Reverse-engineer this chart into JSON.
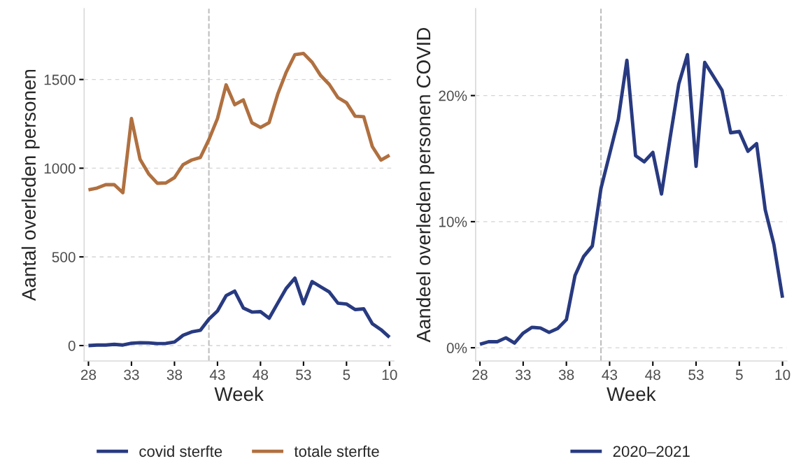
{
  "chart_data": [
    {
      "type": "line",
      "xlabel": "Week",
      "ylabel": "Aantal overleden personen",
      "categories": [
        "28",
        null,
        null,
        null,
        null,
        "33",
        null,
        null,
        null,
        null,
        "38",
        null,
        null,
        null,
        null,
        "43",
        null,
        null,
        null,
        null,
        "48",
        null,
        null,
        null,
        null,
        "53",
        null,
        null,
        null,
        null,
        "5",
        null,
        null,
        null,
        null,
        "10"
      ],
      "series": [
        {
          "name": "covid sterfte",
          "color": "#283a80",
          "values": [
            0,
            3,
            3,
            7,
            3,
            13,
            16,
            15,
            11,
            12,
            20,
            58,
            77,
            86,
            149,
            195,
            281,
            307,
            212,
            189,
            191,
            154,
            239,
            323,
            380,
            236,
            361,
            331,
            302,
            239,
            234,
            203,
            207,
            123,
            90,
            47
          ]
        },
        {
          "name": "totale sterfte",
          "color": "#b07040",
          "values": [
            878,
            888,
            907,
            907,
            862,
            1280,
            1050,
            968,
            915,
            917,
            947,
            1020,
            1046,
            1060,
            1161,
            1280,
            1470,
            1358,
            1385,
            1256,
            1230,
            1257,
            1417,
            1542,
            1640,
            1647,
            1597,
            1522,
            1472,
            1398,
            1369,
            1293,
            1290,
            1122,
            1046,
            1073
          ]
        }
      ],
      "ylim": [
        -87,
        1900
      ],
      "yticks": [
        0,
        500,
        1000,
        1500
      ],
      "grid": "y",
      "legend": "bottom",
      "line_style": "solid",
      "marker": "none"
    },
    {
      "type": "line",
      "xlabel": "Week",
      "ylabel": "Aandeel overleden personen COVID",
      "categories": [
        "28",
        null,
        null,
        null,
        null,
        "33",
        null,
        null,
        null,
        null,
        "38",
        null,
        null,
        null,
        null,
        "43",
        null,
        null,
        null,
        null,
        "48",
        null,
        null,
        null,
        null,
        "53",
        null,
        null,
        null,
        null,
        "5",
        null,
        null,
        null,
        null,
        "10"
      ],
      "series": [
        {
          "name": "2020–2021",
          "color": "#283a80",
          "values": [
            0.28,
            0.48,
            0.48,
            0.79,
            0.37,
            1.16,
            1.62,
            1.57,
            1.22,
            1.53,
            2.23,
            5.73,
            7.24,
            8.07,
            12.63,
            15.36,
            18.1,
            22.8,
            15.23,
            14.75,
            15.49,
            12.19,
            16.65,
            20.92,
            23.24,
            14.38,
            22.63,
            21.53,
            20.42,
            17.05,
            17.15,
            15.58,
            16.19,
            10.94,
            8.2,
            3.96
          ]
        }
      ],
      "ylim": [
        -1.05,
        26.9
      ],
      "yticks": [
        {
          "value": 0,
          "label": "0%"
        },
        {
          "value": 10,
          "label": "10%"
        },
        {
          "value": 20,
          "label": "20%"
        }
      ],
      "grid": "y",
      "legend": "bottom",
      "line_style": "solid",
      "marker": "none"
    }
  ]
}
